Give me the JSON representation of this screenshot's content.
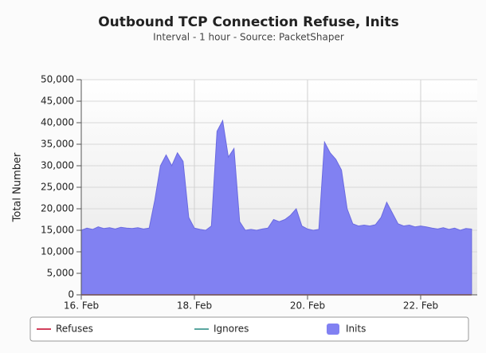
{
  "chart_data": {
    "type": "area",
    "title": "Outbound TCP Connection Refuse, Inits",
    "subtitle": "Interval - 1 hour - Source: PacketShaper",
    "ylabel": "Total Number",
    "x": [
      16,
      16.1,
      16.2,
      16.3,
      16.4,
      16.5,
      16.6,
      16.7,
      16.8,
      16.9,
      17,
      17.1,
      17.2,
      17.3,
      17.4,
      17.5,
      17.6,
      17.7,
      17.8,
      17.9,
      18,
      18.1,
      18.2,
      18.3,
      18.4,
      18.5,
      18.6,
      18.7,
      18.8,
      18.9,
      19,
      19.1,
      19.2,
      19.3,
      19.4,
      19.5,
      19.6,
      19.7,
      19.8,
      19.9,
      20,
      20.1,
      20.2,
      20.3,
      20.4,
      20.5,
      20.6,
      20.7,
      20.8,
      20.9,
      21,
      21.1,
      21.2,
      21.3,
      21.4,
      21.5,
      21.6,
      21.7,
      21.8,
      21.9,
      22,
      22.1,
      22.2,
      22.3,
      22.4,
      22.5,
      22.6,
      22.7,
      22.8,
      22.9
    ],
    "series": [
      {
        "name": "Refuses",
        "color": "#d2405c",
        "values": [
          0,
          0,
          0,
          0,
          0,
          0,
          0,
          0,
          0,
          0,
          0,
          0,
          0,
          0,
          0,
          0,
          0,
          0,
          0,
          0,
          0,
          0,
          0,
          0,
          0,
          0,
          0,
          0,
          0,
          0,
          0,
          0,
          0,
          0,
          0,
          0,
          0,
          0,
          0,
          0,
          0,
          0,
          0,
          0,
          0,
          0,
          0,
          0,
          0,
          0,
          0,
          0,
          0,
          0,
          0,
          0,
          0,
          0,
          0,
          0,
          0,
          0,
          0,
          0,
          0,
          0,
          0,
          0,
          0,
          0
        ]
      },
      {
        "name": "Ignores",
        "color": "#5aa6a0",
        "values": [
          0,
          0,
          0,
          0,
          0,
          0,
          0,
          0,
          0,
          0,
          0,
          0,
          0,
          0,
          0,
          0,
          0,
          0,
          0,
          0,
          0,
          0,
          0,
          0,
          0,
          0,
          0,
          0,
          0,
          0,
          0,
          0,
          0,
          0,
          0,
          0,
          0,
          0,
          0,
          0,
          0,
          0,
          0,
          0,
          0,
          0,
          0,
          0,
          0,
          0,
          0,
          0,
          0,
          0,
          0,
          0,
          0,
          0,
          0,
          0,
          0,
          0,
          0,
          0,
          0,
          0,
          0,
          0,
          0,
          0
        ]
      },
      {
        "name": "Inits",
        "color": "#8181f2",
        "values": [
          15000,
          15500,
          15200,
          15800,
          15400,
          15600,
          15300,
          15700,
          15500,
          15400,
          15600,
          15300,
          15500,
          22000,
          30000,
          32500,
          30000,
          33000,
          31000,
          18000,
          15500,
          15200,
          15000,
          16000,
          38000,
          40500,
          32000,
          34000,
          17000,
          15000,
          15200,
          15000,
          15300,
          15500,
          17500,
          17000,
          17500,
          18500,
          20000,
          16000,
          15300,
          15000,
          15200,
          35500,
          33000,
          31500,
          29000,
          20000,
          16500,
          16000,
          16200,
          16000,
          16300,
          18000,
          21500,
          19000,
          16500,
          16000,
          16200,
          15800,
          16000,
          15800,
          15500,
          15300,
          15600,
          15200,
          15500,
          15000,
          15400,
          15300
        ]
      }
    ],
    "xlim": [
      16,
      23
    ],
    "xticks": [
      {
        "value": 16,
        "label": "16. Feb"
      },
      {
        "value": 18,
        "label": "18. Feb"
      },
      {
        "value": 20,
        "label": "20. Feb"
      },
      {
        "value": 22,
        "label": "22. Feb"
      }
    ],
    "ylim": [
      0,
      50000
    ],
    "yticks": [
      0,
      {
        "value": 5000,
        "label": "5,000"
      },
      {
        "value": 10000,
        "label": "10,000"
      },
      {
        "value": 15000,
        "label": "15,000"
      },
      {
        "value": 20000,
        "label": "20,000"
      },
      {
        "value": 25000,
        "label": "25,000"
      },
      {
        "value": 30000,
        "label": "30,000"
      },
      {
        "value": 35000,
        "label": "35,000"
      },
      {
        "value": 40000,
        "label": "40,000"
      },
      {
        "value": 45000,
        "label": "45,000"
      },
      {
        "value": 50000,
        "label": "50,000"
      }
    ],
    "grid": true,
    "legend": "bottom"
  }
}
